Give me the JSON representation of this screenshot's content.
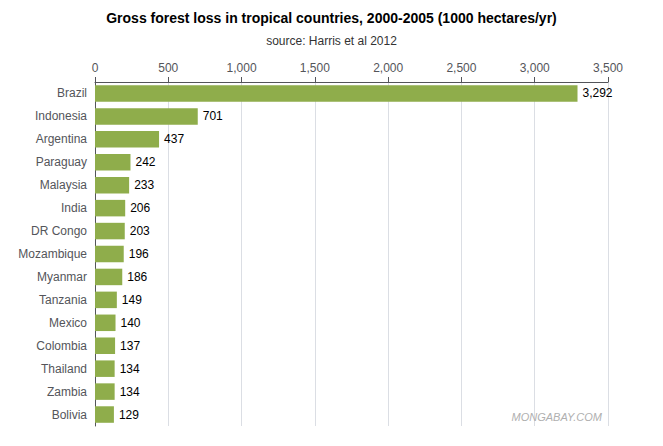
{
  "chart_data": {
    "type": "bar",
    "orientation": "horizontal",
    "title": "Gross forest loss in tropical countries, 2000-2005 (1000 hectares/yr)",
    "subtitle": "source: Harris et al 2012",
    "annotation": "MONGABAY.COM",
    "categories": [
      "Brazil",
      "Indonesia",
      "Argentina",
      "Paraguay",
      "Malaysia",
      "India",
      "DR Congo",
      "Mozambique",
      "Myanmar",
      "Tanzania",
      "Mexico",
      "Colombia",
      "Thailand",
      "Zambia",
      "Bolivia"
    ],
    "values": [
      3292,
      701,
      437,
      242,
      233,
      206,
      203,
      196,
      186,
      149,
      140,
      137,
      134,
      134,
      129
    ],
    "value_labels": [
      "3,292",
      "701",
      "437",
      "242",
      "233",
      "206",
      "203",
      "196",
      "186",
      "149",
      "140",
      "137",
      "134",
      "134",
      "129"
    ],
    "color": "#8fad4b",
    "xlim": [
      0,
      3500
    ],
    "xticks": [
      0,
      500,
      {
        "value": 1000,
        "label": "1,000"
      },
      {
        "value": 1500,
        "label": "1,500"
      },
      {
        "value": 2000,
        "label": "2,000"
      },
      {
        "value": 2500,
        "label": "2,500"
      },
      {
        "value": 3000,
        "label": "3,000"
      },
      {
        "value": 3500,
        "label": "3,500"
      }
    ],
    "grid": true,
    "data_labels": true
  }
}
